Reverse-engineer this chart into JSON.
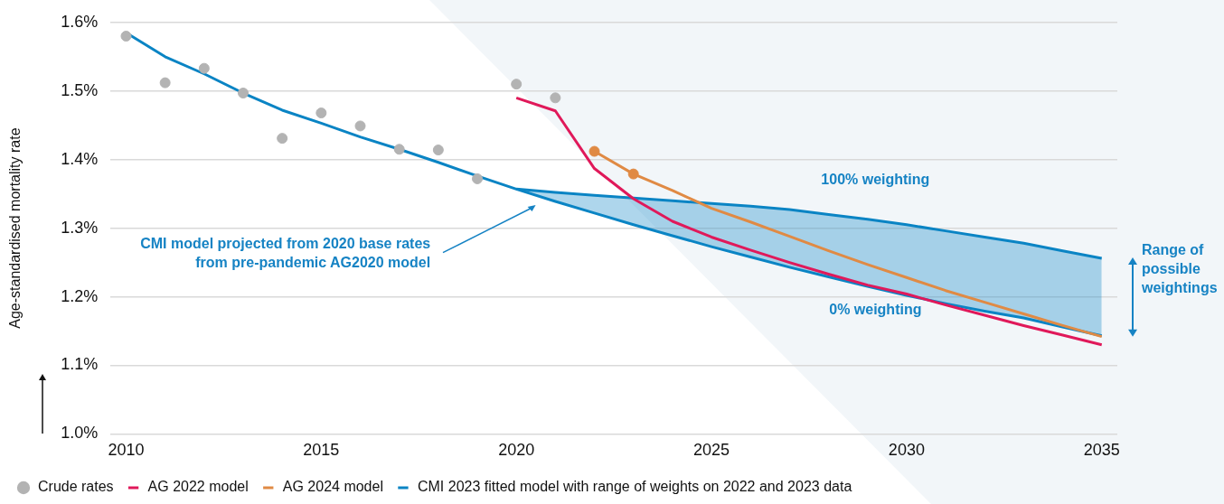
{
  "chart_data": {
    "type": "line",
    "ylabel": "Age-standardised mortality rate",
    "xlim": [
      2009.6,
      2035.4
    ],
    "xticks": [
      2010,
      2015,
      2020,
      2025,
      2030,
      2035
    ],
    "ylim": [
      1.0,
      1.6
    ],
    "yticks": [
      {
        "value": 1.0,
        "label": "1.0%"
      },
      {
        "value": 1.1,
        "label": "1.1%"
      },
      {
        "value": 1.2,
        "label": "1.2%"
      },
      {
        "value": 1.3,
        "label": "1.3%"
      },
      {
        "value": 1.4,
        "label": "1.4%"
      },
      {
        "value": 1.5,
        "label": "1.5%"
      },
      {
        "value": 1.6,
        "label": "1.6%"
      }
    ],
    "grid": "y",
    "legend": "bottom",
    "line_style": "solid",
    "annotations": [
      "100% weighting",
      "0% weighting",
      "CMI model projected from 2020 base rates\nfrom pre-pandemic AG2020 model",
      "Range of possible weightings"
    ],
    "series": [
      {
        "name": "Crude rates",
        "type": "scatter",
        "marker": "circle",
        "color": "#b3b3b3",
        "x": [
          2010,
          2011,
          2012,
          2013,
          2014,
          2015,
          2016,
          2017,
          2018,
          2019,
          2020,
          2021
        ],
        "values": [
          1.58,
          1.512,
          1.533,
          1.497,
          1.431,
          1.468,
          1.449,
          1.415,
          1.414,
          1.372,
          1.51,
          1.49
        ]
      },
      {
        "name": "AG 2022 model",
        "marker": "none",
        "color": "#e0195a",
        "x": [
          2020,
          2021,
          2022,
          2023,
          2024,
          2025,
          2026,
          2027,
          2028,
          2029,
          2030,
          2031,
          2032,
          2033,
          2034,
          2035
        ],
        "values": [
          1.49,
          1.471,
          1.387,
          1.343,
          1.31,
          1.287,
          1.268,
          1.25,
          1.233,
          1.217,
          1.204,
          1.188,
          1.173,
          1.158,
          1.144,
          1.13
        ]
      },
      {
        "name": "AG 2024 model",
        "marker": "none",
        "color": "#e08a44",
        "x": [
          2022,
          2023,
          2024,
          2025,
          2026,
          2027,
          2028,
          2029,
          2030,
          2031,
          2032,
          2033,
          2034,
          2035
        ],
        "values": [
          1.412,
          1.379,
          1.355,
          1.329,
          1.309,
          1.288,
          1.267,
          1.247,
          1.228,
          1.209,
          1.192,
          1.175,
          1.158,
          1.142
        ]
      },
      {
        "type": "scatter",
        "marker": "circle",
        "color": "#e08a44",
        "x": [
          2022,
          2023
        ],
        "values": [
          1.412,
          1.379
        ]
      },
      {
        "name": "CMI 2023 fitted model with range of weights on 2022 and 2023 data",
        "marker": "none",
        "color": "#0a84c4",
        "x": [
          2010,
          2011,
          2012,
          2013,
          2014,
          2015,
          2016,
          2017,
          2018,
          2019,
          2020,
          2021,
          2022,
          2023,
          2024,
          2025,
          2026,
          2027,
          2028,
          2029,
          2030,
          2031,
          2032,
          2033,
          2034,
          2035
        ],
        "values": [
          1.585,
          1.55,
          1.525,
          1.497,
          1.472,
          1.453,
          1.433,
          1.415,
          1.396,
          1.376,
          1.357,
          1.339,
          1.322,
          1.305,
          1.289,
          1.273,
          1.258,
          1.243,
          1.229,
          1.215,
          1.202,
          1.19,
          1.179,
          1.169,
          1.156,
          1.143
        ],
        "lower": [
          null,
          null,
          null,
          null,
          null,
          null,
          null,
          null,
          null,
          null,
          1.357,
          1.339,
          1.322,
          1.305,
          1.289,
          1.273,
          1.258,
          1.243,
          1.229,
          1.215,
          1.202,
          1.19,
          1.179,
          1.169,
          1.156,
          1.143
        ],
        "upper": [
          null,
          null,
          null,
          null,
          null,
          null,
          null,
          null,
          null,
          null,
          1.357,
          1.352,
          1.348,
          1.344,
          1.34,
          1.336,
          1.332,
          1.327,
          1.32,
          1.313,
          1.305,
          1.296,
          1.287,
          1.278,
          1.267,
          1.256
        ]
      },
      {
        "marker": "none",
        "color": "#0a84c4",
        "x": [
          2020,
          2021,
          2022,
          2023,
          2024,
          2025,
          2026,
          2027,
          2028,
          2029,
          2030,
          2031,
          2032,
          2033,
          2034,
          2035
        ],
        "values": [
          1.357,
          1.352,
          1.348,
          1.344,
          1.34,
          1.336,
          1.332,
          1.327,
          1.32,
          1.313,
          1.305,
          1.296,
          1.287,
          1.278,
          1.267,
          1.256
        ]
      }
    ]
  }
}
